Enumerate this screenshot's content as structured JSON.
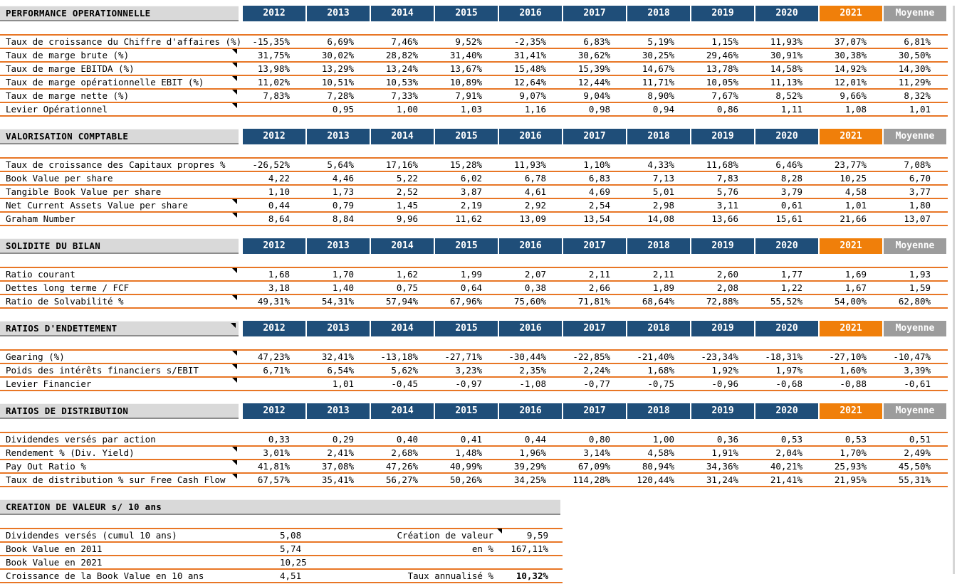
{
  "colors": {
    "blue": "#1F4E79",
    "hl": "#F07F0A",
    "avg": "#9C9C9C",
    "line": "#E87625",
    "bar": "#D9D9D9",
    "barline": "#8C8C8C"
  },
  "columns": [
    "2012",
    "2013",
    "2014",
    "2015",
    "2016",
    "2017",
    "2018",
    "2019",
    "2020",
    "2021",
    "Moyenne"
  ],
  "sections": [
    {
      "title": "PERFORMANCE OPERATIONNELLE",
      "header_marker": false,
      "rows": [
        {
          "label": "Taux de croissance du Chiffre d'affaires (%)",
          "marker": false,
          "values": [
            "-15,35%",
            "6,69%",
            "7,46%",
            "9,52%",
            "-2,35%",
            "6,83%",
            "5,19%",
            "1,15%",
            "11,93%",
            "37,07%",
            "6,81%"
          ]
        },
        {
          "label": "Taux de marge brute (%)",
          "marker": true,
          "values": [
            "31,75%",
            "30,02%",
            "28,82%",
            "31,40%",
            "31,41%",
            "30,62%",
            "30,25%",
            "29,46%",
            "30,91%",
            "30,38%",
            "30,50%"
          ]
        },
        {
          "label": "Taux de marge EBITDA (%)",
          "marker": true,
          "values": [
            "13,98%",
            "13,29%",
            "13,24%",
            "13,67%",
            "15,48%",
            "15,39%",
            "14,67%",
            "13,78%",
            "14,58%",
            "14,92%",
            "14,30%"
          ]
        },
        {
          "label": "Taux de marge opérationnelle EBIT (%)",
          "marker": true,
          "values": [
            "11,02%",
            "10,51%",
            "10,53%",
            "10,89%",
            "12,64%",
            "12,44%",
            "11,71%",
            "10,05%",
            "11,13%",
            "12,01%",
            "11,29%"
          ]
        },
        {
          "label": "Taux de marge nette (%)",
          "marker": true,
          "values": [
            "7,83%",
            "7,28%",
            "7,33%",
            "7,91%",
            "9,07%",
            "9,04%",
            "8,90%",
            "7,67%",
            "8,52%",
            "9,66%",
            "8,32%"
          ]
        },
        {
          "label": "Levier Opérationnel",
          "marker": true,
          "values": [
            "",
            "0,95",
            "1,00",
            "1,03",
            "1,16",
            "0,98",
            "0,94",
            "0,86",
            "1,11",
            "1,08",
            "1,01"
          ]
        }
      ]
    },
    {
      "title": "VALORISATION COMPTABLE",
      "header_marker": false,
      "rows": [
        {
          "label": "Taux de croissance des Capitaux propres %",
          "marker": false,
          "values": [
            "-26,52%",
            "5,64%",
            "17,16%",
            "15,28%",
            "11,93%",
            "1,10%",
            "4,33%",
            "11,68%",
            "6,46%",
            "23,77%",
            "7,08%"
          ]
        },
        {
          "label": "Book Value per share",
          "marker": false,
          "values": [
            "4,22",
            "4,46",
            "5,22",
            "6,02",
            "6,78",
            "6,83",
            "7,13",
            "7,83",
            "8,28",
            "10,25",
            "6,70"
          ]
        },
        {
          "label": "Tangible Book Value per share",
          "marker": false,
          "values": [
            "1,10",
            "1,73",
            "2,52",
            "3,87",
            "4,61",
            "4,69",
            "5,01",
            "5,76",
            "3,79",
            "4,58",
            "3,77"
          ]
        },
        {
          "label": "Net Current Assets Value per share",
          "marker": true,
          "values": [
            "0,44",
            "0,79",
            "1,45",
            "2,19",
            "2,92",
            "2,54",
            "2,98",
            "3,11",
            "0,61",
            "1,01",
            "1,80"
          ]
        },
        {
          "label": "Graham Number",
          "marker": true,
          "values": [
            "8,64",
            "8,84",
            "9,96",
            "11,62",
            "13,09",
            "13,54",
            "14,08",
            "13,66",
            "15,61",
            "21,66",
            "13,07"
          ]
        }
      ]
    },
    {
      "title": "SOLIDITE DU BILAN",
      "header_marker": false,
      "rows": [
        {
          "label": "Ratio courant",
          "marker": true,
          "values": [
            "1,68",
            "1,70",
            "1,62",
            "1,99",
            "2,07",
            "2,11",
            "2,11",
            "2,60",
            "1,77",
            "1,69",
            "1,93"
          ]
        },
        {
          "label": "Dettes long terme / FCF",
          "marker": false,
          "values": [
            "3,18",
            "1,40",
            "0,75",
            "0,64",
            "0,38",
            "2,66",
            "1,89",
            "2,08",
            "1,22",
            "1,67",
            "1,59"
          ]
        },
        {
          "label": "Ratio de Solvabilité %",
          "marker": true,
          "values": [
            "49,31%",
            "54,31%",
            "57,94%",
            "67,96%",
            "75,60%",
            "71,81%",
            "68,64%",
            "72,88%",
            "55,52%",
            "54,00%",
            "62,80%"
          ]
        }
      ]
    },
    {
      "title": "RATIOS D'ENDETTEMENT",
      "header_marker": true,
      "rows": [
        {
          "label": "Gearing (%)",
          "marker": true,
          "values": [
            "47,23%",
            "32,41%",
            "-13,18%",
            "-27,71%",
            "-30,44%",
            "-22,85%",
            "-21,40%",
            "-23,34%",
            "-18,31%",
            "-27,10%",
            "-10,47%"
          ]
        },
        {
          "label": "Poids des intérêts financiers s/EBIT",
          "marker": true,
          "values": [
            "6,71%",
            "6,54%",
            "5,62%",
            "3,23%",
            "2,35%",
            "2,24%",
            "1,68%",
            "1,92%",
            "1,97%",
            "1,60%",
            "3,39%"
          ]
        },
        {
          "label": "Levier Financier",
          "marker": true,
          "values": [
            "",
            "1,01",
            "-0,45",
            "-0,97",
            "-1,08",
            "-0,77",
            "-0,75",
            "-0,96",
            "-0,68",
            "-0,88",
            "-0,61"
          ]
        }
      ]
    },
    {
      "title": "RATIOS DE DISTRIBUTION",
      "header_marker": false,
      "rows": [
        {
          "label": "Dividendes versés par action",
          "marker": false,
          "values": [
            "0,33",
            "0,29",
            "0,40",
            "0,41",
            "0,44",
            "0,80",
            "1,00",
            "0,36",
            "0,53",
            "0,53",
            "0,51"
          ]
        },
        {
          "label": "Rendement % (Div. Yield)",
          "marker": true,
          "values": [
            "3,01%",
            "2,41%",
            "2,68%",
            "1,48%",
            "1,96%",
            "3,14%",
            "4,58%",
            "1,91%",
            "2,04%",
            "1,70%",
            "2,49%"
          ]
        },
        {
          "label": "Pay Out Ratio %",
          "marker": true,
          "values": [
            "41,81%",
            "37,08%",
            "47,26%",
            "40,99%",
            "39,29%",
            "67,09%",
            "80,94%",
            "34,36%",
            "40,21%",
            "25,93%",
            "45,50%"
          ]
        },
        {
          "label": "Taux de distribution % sur Free Cash Flow",
          "marker": true,
          "values": [
            "67,57%",
            "35,41%",
            "56,27%",
            "50,26%",
            "34,25%",
            "114,28%",
            "120,44%",
            "31,24%",
            "21,41%",
            "21,95%",
            "55,31%"
          ]
        }
      ]
    }
  ],
  "creation": {
    "title": "CREATION DE VALEUR s/ 10 ans",
    "rows": [
      {
        "label": "Dividendes versés (cumul 10 ans)",
        "value": "5,08",
        "label2": "Création de valeur",
        "marker2": true,
        "value2": "9,59",
        "bold2": false
      },
      {
        "label": "Book Value en 2011",
        "value": "5,74",
        "label2": "en %",
        "marker2": false,
        "value2": "167,11%",
        "bold2": false
      },
      {
        "label": "Book Value en 2021",
        "value": "10,25",
        "label2": "",
        "marker2": false,
        "value2": "",
        "bold2": false
      },
      {
        "label": "Croissance de la Book Value en 10 ans",
        "value": "4,51",
        "label2": "Taux annualisé %",
        "marker2": false,
        "value2": "10,32%",
        "bold2": true
      }
    ]
  }
}
